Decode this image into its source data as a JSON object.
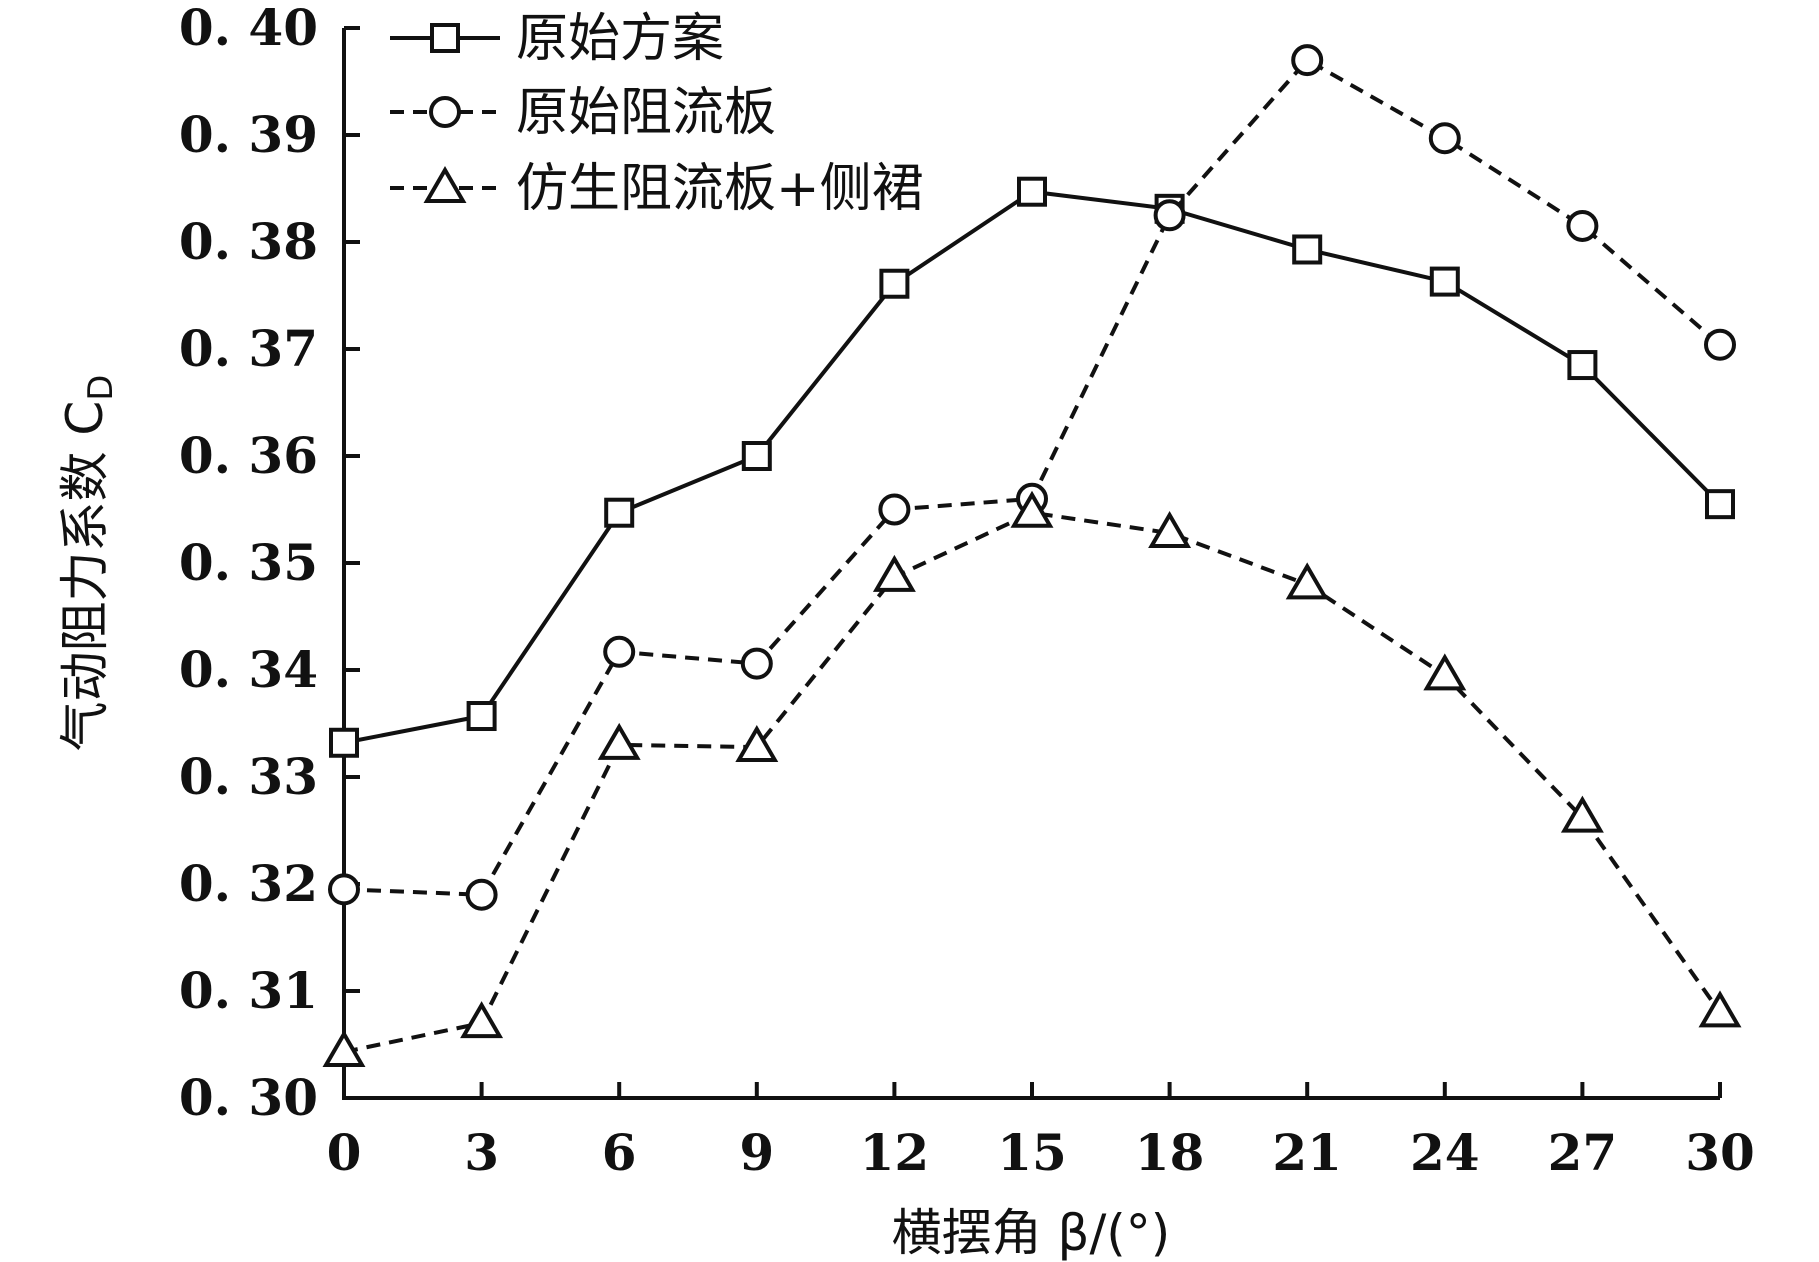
{
  "chart_data": {
    "type": "line",
    "title": "",
    "xlabel": "横摆角 β/(°)",
    "ylabel": "气动阻力系数 C",
    "ylabel_sub": "D",
    "xlim": [
      0,
      30
    ],
    "ylim": [
      0.3,
      0.4
    ],
    "x_ticks": [
      "0",
      "3",
      "6",
      "9",
      "12",
      "15",
      "18",
      "21",
      "24",
      "27",
      "30"
    ],
    "y_ticks": [
      "0. 30",
      "0. 31",
      "0. 32",
      "0. 33",
      "0. 34",
      "0. 35",
      "0. 36",
      "0. 37",
      "0. 38",
      "0. 39",
      "0. 40"
    ],
    "grid": false,
    "legend_position": "top-left",
    "x": [
      0,
      3,
      6,
      9,
      12,
      15,
      18,
      21,
      24,
      27,
      30
    ],
    "series": [
      {
        "name": "原始方案",
        "marker": "square",
        "line_style": "solid",
        "values": [
          0.3332,
          0.3357,
          0.3547,
          0.36,
          0.3761,
          0.3847,
          0.3831,
          0.3793,
          0.3763,
          0.3685,
          0.3555
        ]
      },
      {
        "name": "原始阻流板",
        "marker": "circle",
        "line_style": "dashed",
        "values": [
          0.3195,
          0.319,
          0.3417,
          0.3406,
          0.355,
          0.356,
          0.3825,
          0.397,
          0.3897,
          0.3815,
          0.3704
        ]
      },
      {
        "name": "仿生阻流板+侧裙",
        "marker": "triangle",
        "line_style": "dashed",
        "values": [
          0.3043,
          0.307,
          0.333,
          0.3328,
          0.3487,
          0.3547,
          0.3528,
          0.348,
          0.3395,
          0.3262,
          0.308
        ]
      }
    ],
    "colors": {
      "line": "#111111",
      "marker_fill": "#ffffff"
    }
  }
}
